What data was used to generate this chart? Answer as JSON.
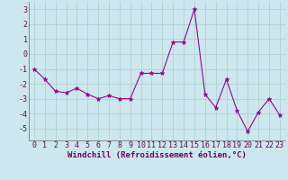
{
  "x": [
    0,
    1,
    2,
    3,
    4,
    5,
    6,
    7,
    8,
    9,
    10,
    11,
    12,
    13,
    14,
    15,
    16,
    17,
    18,
    19,
    20,
    21,
    22,
    23
  ],
  "y": [
    -1.0,
    -1.7,
    -2.5,
    -2.6,
    -2.3,
    -2.7,
    -3.0,
    -2.8,
    -3.0,
    -3.0,
    -1.3,
    -1.3,
    -1.3,
    0.8,
    0.8,
    3.0,
    -2.7,
    -3.6,
    -1.7,
    -3.8,
    -5.2,
    -3.9,
    -3.0,
    -4.1
  ],
  "line_color": "#990099",
  "marker": "*",
  "marker_size": 3.5,
  "bg_color": "#cce8ee",
  "grid_color": "#aacccc",
  "xlabel": "Windchill (Refroidissement éolien,°C)",
  "xlabel_fontsize": 6.5,
  "tick_fontsize": 6.0,
  "ylim": [
    -5.8,
    3.5
  ],
  "xlim": [
    -0.5,
    23.5
  ],
  "yticks": [
    -5,
    -4,
    -3,
    -2,
    -1,
    0,
    1,
    2,
    3
  ],
  "xticks": [
    0,
    1,
    2,
    3,
    4,
    5,
    6,
    7,
    8,
    9,
    10,
    11,
    12,
    13,
    14,
    15,
    16,
    17,
    18,
    19,
    20,
    21,
    22,
    23
  ],
  "spine_color": "#666666",
  "label_color": "#660066",
  "tick_color": "#660066"
}
